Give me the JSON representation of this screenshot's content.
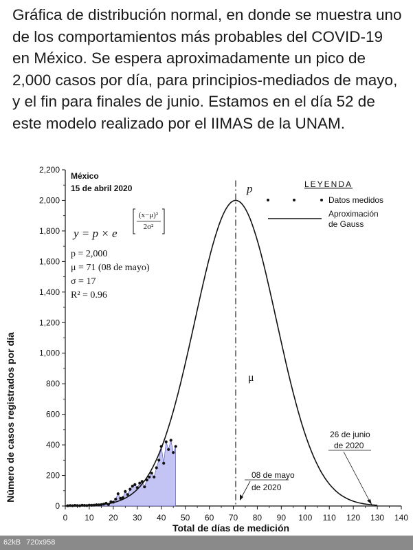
{
  "caption": "Gráfica de distribución normal, en donde se muestra uno de los comportamientos más probables del COVID-19 en México. Se espera aproximadamente un pico de 2,000 casos por día, para principios-mediados de mayo, y el fin para finales de junio. Estamos en el día 52 de este modelo realizado por el IIMAS de la UNAM.",
  "footer": {
    "size": "62kB",
    "dims": "720x958"
  },
  "chart_data": {
    "type": "line",
    "xlabel": "Total de días de medición",
    "ylabel": "Número de casos registrados por día",
    "xlim": [
      0,
      140
    ],
    "ylim": [
      0,
      2200
    ],
    "xticks": [
      0,
      10,
      20,
      30,
      40,
      50,
      60,
      70,
      80,
      90,
      100,
      110,
      120,
      130,
      140
    ],
    "yticks": [
      0,
      200,
      400,
      600,
      800,
      1000,
      1200,
      1400,
      1600,
      1800,
      2000,
      2200
    ],
    "ytick_labels": [
      "0",
      "200",
      "400",
      "600",
      "800",
      "1,000",
      "1,200",
      "1,400",
      "1,600",
      "1,800",
      "2,000",
      "2,200"
    ],
    "header_line1": "México",
    "header_line2": "15 de abril 2020",
    "formula_lhs": "y = p × e",
    "formula_num": "(x−μ)²",
    "formula_den": "2σ²",
    "params": [
      "p = 2,000",
      "μ = 71 (08 de mayo)",
      "σ = 17",
      "R² = 0.96"
    ],
    "legend_title": "LEYENDA",
    "legend_items": [
      "Datos medidos",
      "Aproximación",
      "de Gauss"
    ],
    "peak_label": "p",
    "mu_label": "μ",
    "annotation_mayo": [
      "08 de mayo",
      "de 2020"
    ],
    "annotation_junio": [
      "26 de junio",
      "de 2020"
    ],
    "gauss": {
      "p": 2000,
      "mu": 71,
      "sigma": 17
    },
    "measured": {
      "x": [
        1,
        2,
        3,
        4,
        5,
        6,
        7,
        8,
        9,
        10,
        11,
        12,
        13,
        14,
        15,
        16,
        17,
        18,
        19,
        20,
        21,
        22,
        23,
        24,
        25,
        26,
        27,
        28,
        29,
        30,
        31,
        32,
        33,
        34,
        35,
        36,
        37,
        38,
        39,
        40,
        41,
        42,
        43,
        44,
        45,
        46
      ],
      "y": [
        2,
        3,
        2,
        4,
        3,
        2,
        5,
        4,
        3,
        6,
        5,
        6,
        8,
        7,
        9,
        12,
        18,
        10,
        28,
        25,
        45,
        80,
        50,
        55,
        95,
        75,
        110,
        130,
        140,
        120,
        150,
        160,
        125,
        170,
        190,
        215,
        190,
        250,
        300,
        390,
        280,
        420,
        370,
        430,
        350,
        390
      ]
    },
    "series": [
      {
        "values_ref": "measured",
        "kind": "scatter-area"
      },
      {
        "values_ref": "gauss",
        "kind": "line"
      }
    ]
  }
}
